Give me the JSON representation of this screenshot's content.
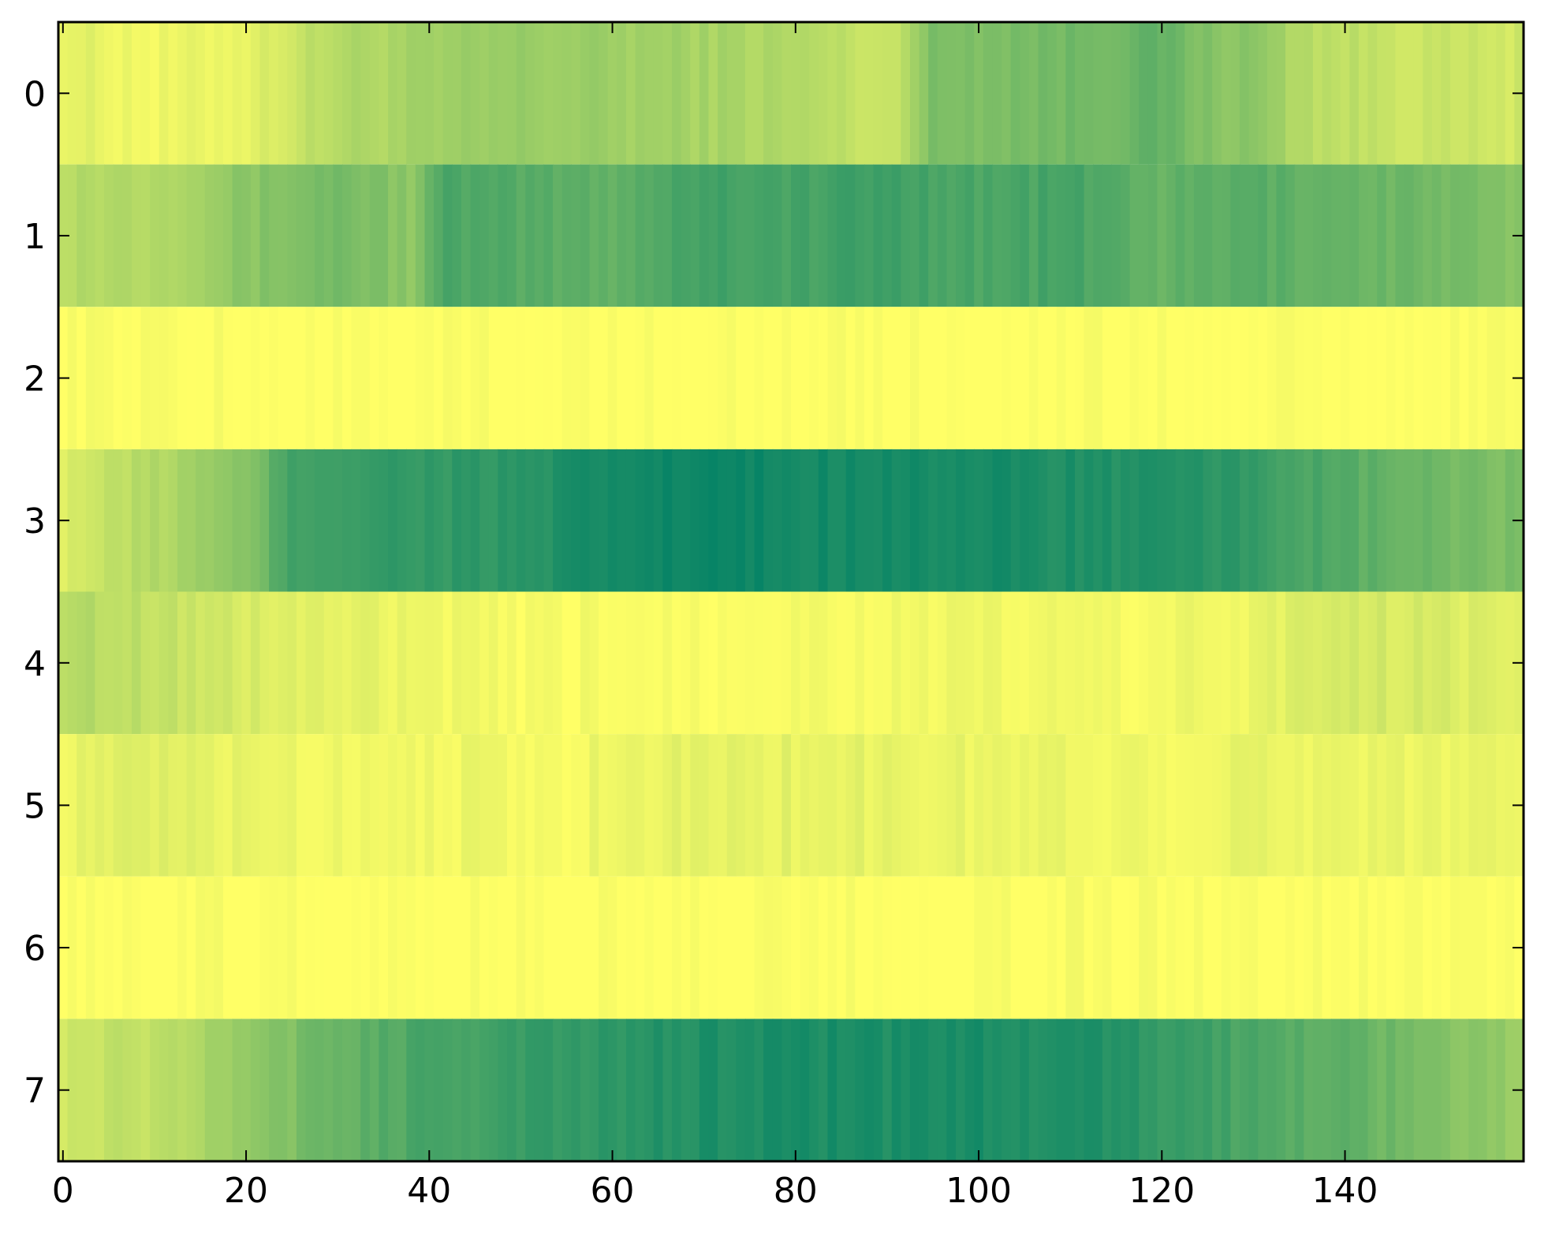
{
  "chart_data": {
    "type": "heatmap",
    "title": "",
    "xlabel": "",
    "ylabel": "",
    "colormap": "summer_r",
    "colormap_stops": [
      "#ffff66",
      "#008066"
    ],
    "value_range": [
      0,
      1
    ],
    "xlim": [
      -0.5,
      159.5
    ],
    "ylim": [
      7.5,
      -0.5
    ],
    "x_ticks": [
      0,
      20,
      40,
      60,
      80,
      100,
      120,
      140
    ],
    "y_ticks": [
      0,
      1,
      2,
      3,
      4,
      5,
      6,
      7
    ],
    "n_cols": 160,
    "row_profiles": [
      [
        [
          0,
          0.12
        ],
        [
          10,
          0.05
        ],
        [
          20,
          0.1
        ],
        [
          30,
          0.3
        ],
        [
          40,
          0.35
        ],
        [
          50,
          0.4
        ],
        [
          60,
          0.38
        ],
        [
          70,
          0.35
        ],
        [
          80,
          0.3
        ],
        [
          90,
          0.2
        ],
        [
          95,
          0.5
        ],
        [
          100,
          0.52
        ],
        [
          110,
          0.55
        ],
        [
          120,
          0.6
        ],
        [
          125,
          0.48
        ],
        [
          130,
          0.45
        ],
        [
          135,
          0.3
        ],
        [
          140,
          0.25
        ],
        [
          150,
          0.2
        ],
        [
          159,
          0.18
        ]
      ],
      [
        [
          0,
          0.3
        ],
        [
          10,
          0.32
        ],
        [
          20,
          0.45
        ],
        [
          30,
          0.55
        ],
        [
          38,
          0.45
        ],
        [
          42,
          0.7
        ],
        [
          50,
          0.65
        ],
        [
          60,
          0.62
        ],
        [
          70,
          0.75
        ],
        [
          80,
          0.72
        ],
        [
          90,
          0.76
        ],
        [
          100,
          0.7
        ],
        [
          110,
          0.72
        ],
        [
          120,
          0.6
        ],
        [
          130,
          0.65
        ],
        [
          140,
          0.6
        ],
        [
          150,
          0.55
        ],
        [
          159,
          0.45
        ]
      ],
      [
        [
          0,
          0.01
        ],
        [
          10,
          0.02
        ],
        [
          20,
          0.0
        ],
        [
          40,
          0.0
        ],
        [
          80,
          0.0
        ],
        [
          120,
          0.0
        ],
        [
          159,
          0.0
        ]
      ],
      [
        [
          0,
          0.15
        ],
        [
          10,
          0.3
        ],
        [
          20,
          0.45
        ],
        [
          25,
          0.75
        ],
        [
          35,
          0.8
        ],
        [
          50,
          0.82
        ],
        [
          60,
          0.92
        ],
        [
          70,
          0.95
        ],
        [
          80,
          0.92
        ],
        [
          90,
          0.93
        ],
        [
          100,
          0.9
        ],
        [
          110,
          0.88
        ],
        [
          120,
          0.85
        ],
        [
          130,
          0.8
        ],
        [
          140,
          0.65
        ],
        [
          150,
          0.55
        ],
        [
          159,
          0.5
        ]
      ],
      [
        [
          0,
          0.3
        ],
        [
          10,
          0.25
        ],
        [
          20,
          0.15
        ],
        [
          30,
          0.1
        ],
        [
          40,
          0.06
        ],
        [
          50,
          0.02
        ],
        [
          60,
          0.03
        ],
        [
          80,
          0.04
        ],
        [
          100,
          0.05
        ],
        [
          120,
          0.04
        ],
        [
          130,
          0.08
        ],
        [
          140,
          0.18
        ],
        [
          150,
          0.15
        ],
        [
          159,
          0.12
        ]
      ],
      [
        [
          0,
          0.08
        ],
        [
          10,
          0.12
        ],
        [
          20,
          0.08
        ],
        [
          30,
          0.06
        ],
        [
          40,
          0.07
        ],
        [
          55,
          0.03
        ],
        [
          60,
          0.09
        ],
        [
          80,
          0.1
        ],
        [
          100,
          0.08
        ],
        [
          120,
          0.06
        ],
        [
          130,
          0.08
        ],
        [
          140,
          0.09
        ],
        [
          159,
          0.07
        ]
      ],
      [
        [
          0,
          0.0
        ],
        [
          20,
          0.01
        ],
        [
          40,
          0.0
        ],
        [
          80,
          0.0
        ],
        [
          110,
          0.02
        ],
        [
          130,
          0.01
        ],
        [
          159,
          0.0
        ]
      ],
      [
        [
          0,
          0.2
        ],
        [
          10,
          0.25
        ],
        [
          20,
          0.4
        ],
        [
          30,
          0.6
        ],
        [
          40,
          0.72
        ],
        [
          60,
          0.82
        ],
        [
          70,
          0.88
        ],
        [
          80,
          0.9
        ],
        [
          90,
          0.88
        ],
        [
          100,
          0.9
        ],
        [
          110,
          0.88
        ],
        [
          120,
          0.8
        ],
        [
          130,
          0.7
        ],
        [
          140,
          0.62
        ],
        [
          150,
          0.5
        ],
        [
          159,
          0.4
        ]
      ]
    ]
  }
}
